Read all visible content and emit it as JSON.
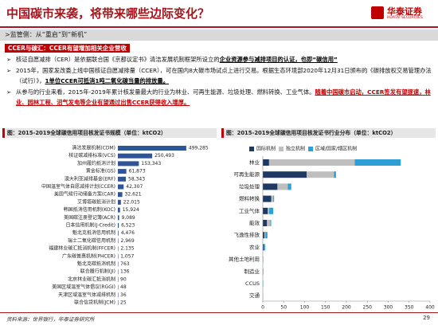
{
  "header": {
    "title": "中国碳市来袭，将带来哪些边际变化？",
    "logo": "华泰证券",
    "logo_en": "HUATAI SECURITIES"
  },
  "section": ">监管侧：从“重启”到“新机”",
  "tag": "CCER与碳汇：CCER有望增加相关企业营收",
  "bullets": [
    {
      "text": "核证自愿减排（CER）是依据联合国《京都议定书》清洁发展机制框架所设立的",
      "emphasis": "企业资源参与减排项目的认证，也即“碳信用”",
      "emphasis_color": "#000000"
    },
    {
      "text": "2015年，国家发改委上线中国核证自愿减排量（CCER），可在国内8大碳市场试点上进行交易。根据生态环境部2020年12月31日颁布的《碳排放权交易管理办法（试行）》，",
      "emphasis": "1单位CCER可抵消1吨二氧化碳当量的排放量。",
      "emphasis_color": "#000000"
    },
    {
      "text": "从参与的行业来看，2015年-2019年累计核发量最大的行业为林业、可再生能源、垃圾处理、燃料转换、工业气体。",
      "emphasis": "随着中国碳市启动，CCER签发有望提速，林业、园林工程、沼气发电等企业有望通过出售CCER获得收入增厚。",
      "emphasis_color": "#c00000"
    }
  ],
  "chart_data": [
    {
      "type": "bar",
      "title": "图：2015-2019全球碳信用项目核发证书规模（单位：ktCO2）",
      "color": "#2f5597",
      "categories": [
        "清洁发展机制(CDM)",
        "核证碳减排标准(VCS)",
        "加州履约抵消计划",
        "黄金标准(GS)",
        "澳大利亚减排基金(ERF)",
        "中国温室气体自愿减排计划(CCER)",
        "美国气候行动储备方案(CAR)",
        "艾博塔碳抵消计划",
        "韩国抵消信用机制(KOC)",
        "美国碳注册登记簿(ACR)",
        "日本信用机制(J-Credit)",
        "魁北克抵消信用机制",
        "瑞士二氧化碳信用机制",
        "福建林业碳汇抵消机制(FFCER)",
        "广东碳普惠机制(PHCER)",
        "魁北克碳抵消机制",
        "联合履行机制(JI)",
        "北京林业碳汇抵消机制",
        "美国区域温室气体倡议(RGGI)",
        "天津区域温室气体减排机制",
        "联合信贷机制(JCM)"
      ],
      "values": [
        499285,
        250493,
        153343,
        61873,
        58343,
        42307,
        32621,
        22015,
        15924,
        9089,
        6523,
        4476,
        2969,
        2135,
        1057,
        763,
        136,
        90,
        48,
        36,
        25
      ],
      "value_labels": [
        "499,285",
        "250,493",
        "153,343",
        "61,873",
        "58,343",
        "42,307",
        "32,621",
        "22,015",
        "15,924",
        "9,089",
        "6,523",
        "4,476",
        "2,969",
        "2,135",
        "1,057",
        "763",
        "136",
        "90",
        "48",
        "36",
        "25"
      ],
      "xlim": [
        0,
        500000
      ]
    },
    {
      "type": "stacked_bar",
      "title": "图：2015-2019全球碳信用项目核发证书行业分布（单位：ktCO2）",
      "categories": [
        "林业",
        "可再生能源",
        "垃圾处理",
        "燃料转换",
        "工业气体",
        "能效",
        "飞逸性排放",
        "农业",
        "其他土地利用",
        "制造业",
        "CCUS",
        "交通"
      ],
      "series": [
        {
          "name": "国际机制",
          "color": "#1f3864",
          "values": [
            15,
            105,
            35,
            20,
            12,
            10,
            4,
            3,
            0,
            1,
            0,
            0
          ]
        },
        {
          "name": "独立机制",
          "color": "#bfbfbf",
          "values": [
            205,
            65,
            25,
            5,
            3,
            8,
            2,
            1,
            0,
            0,
            0,
            0
          ]
        },
        {
          "name": "区域/国家/辖区机制",
          "color": "#2e9fd6",
          "values": [
            110,
            5,
            8,
            2,
            10,
            2,
            5,
            2,
            1,
            0,
            1,
            0.5
          ]
        }
      ],
      "xlim": [
        0,
        400
      ],
      "xticks": [
        0,
        50,
        100,
        150,
        200,
        250,
        300,
        350,
        400
      ],
      "legend": "top"
    }
  ],
  "footer": {
    "source": "资料来源：世界银行，华泰证券研究所",
    "page": 29
  }
}
